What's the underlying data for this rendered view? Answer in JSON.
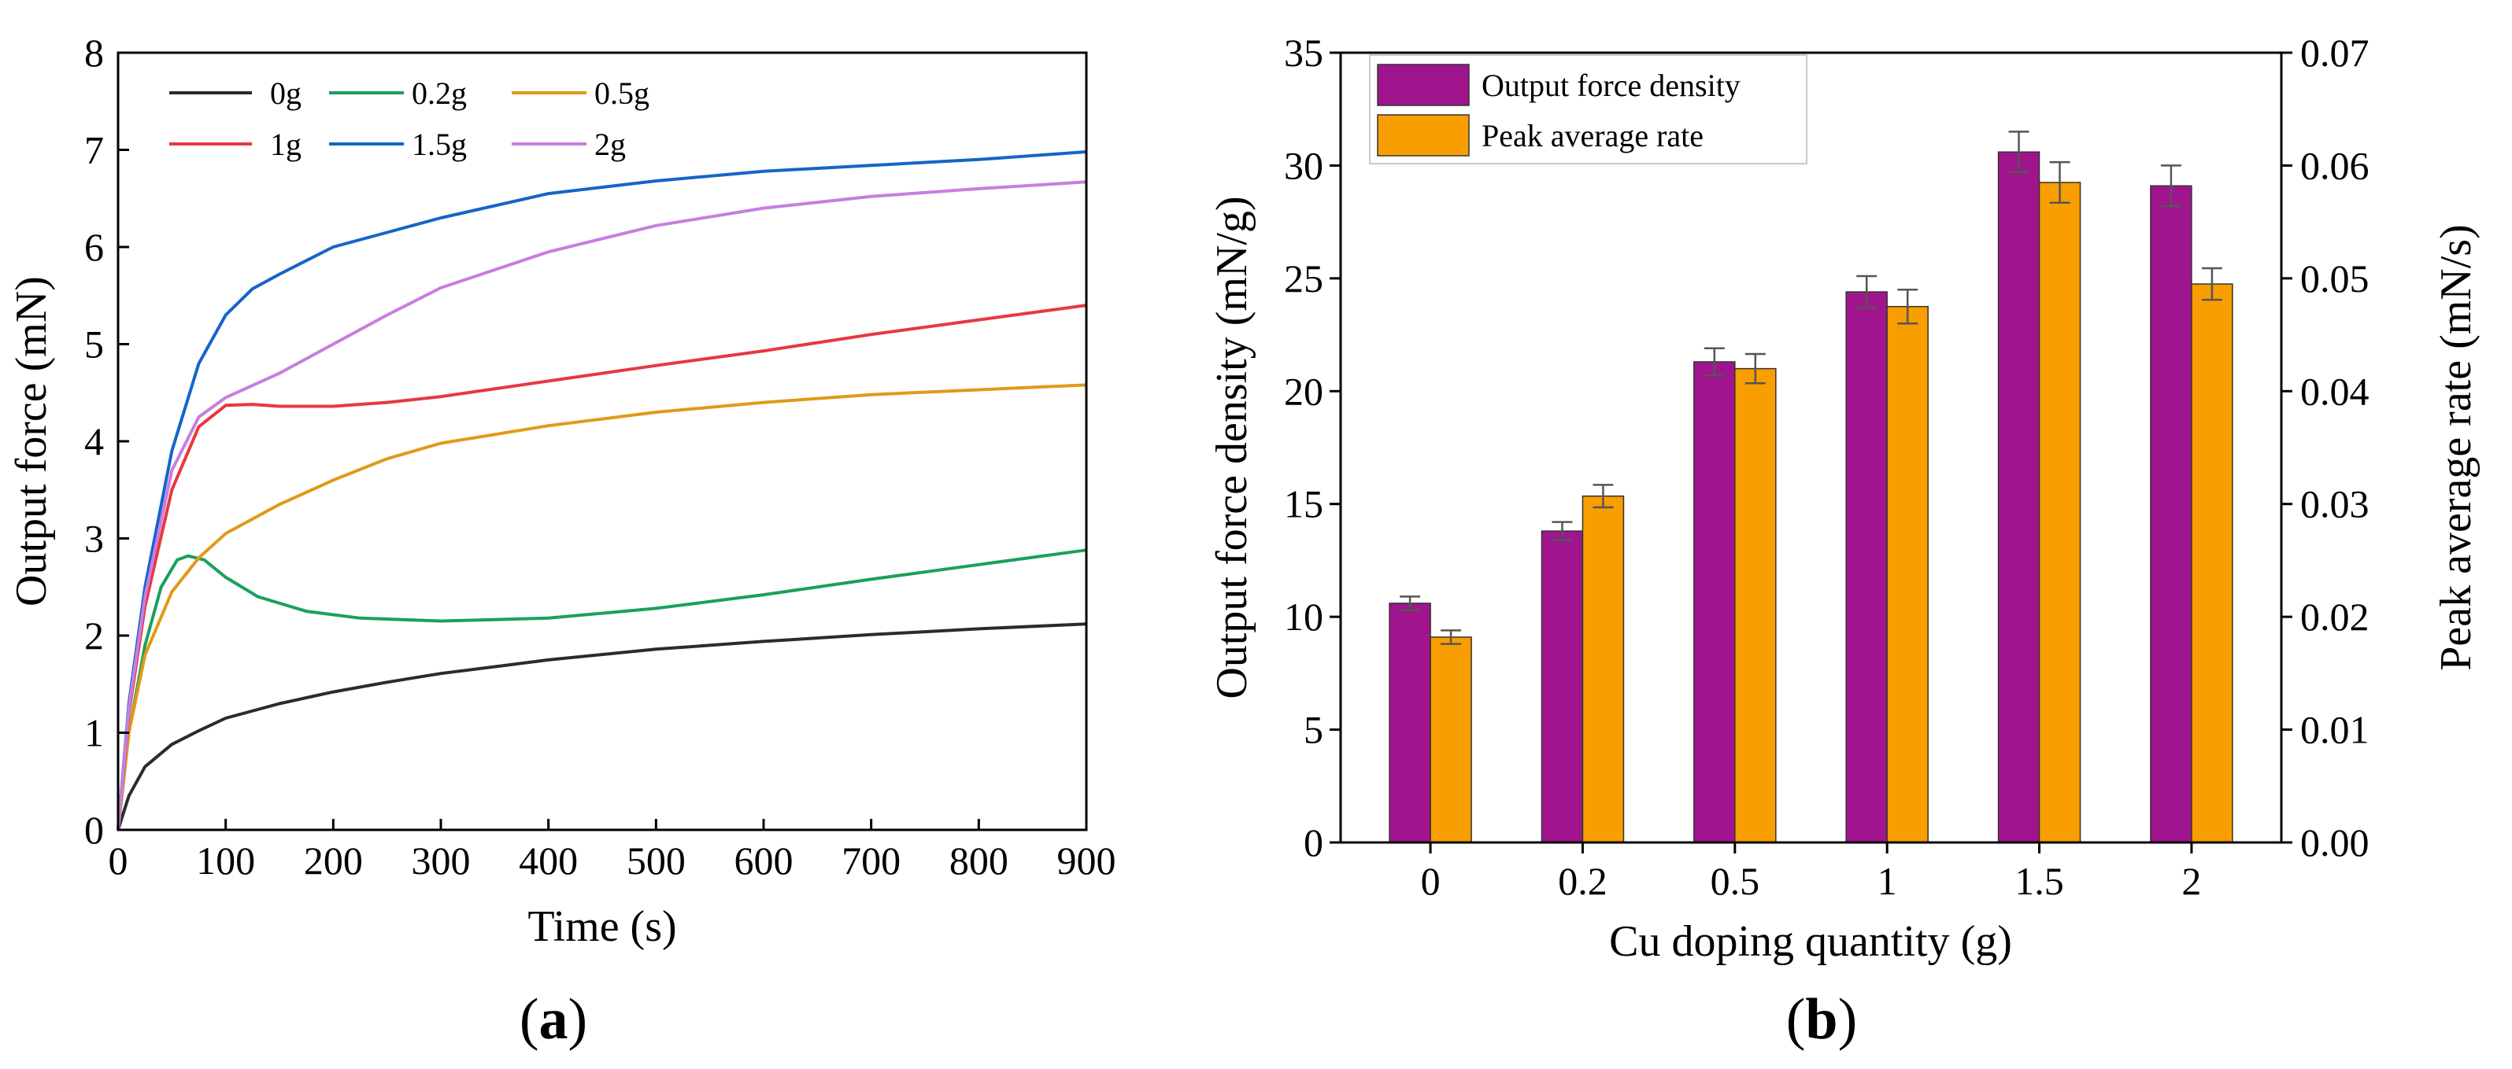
{
  "charts": {
    "a": {
      "caption": "(a)",
      "caption_parts": [
        "(",
        "a",
        ")"
      ],
      "chart_data": {
        "type": "line",
        "xlabel": "Time (s)",
        "ylabel": "Output force (mN)",
        "xlim": [
          0,
          900
        ],
        "ylim": [
          0,
          8
        ],
        "xticks": [
          0,
          100,
          200,
          300,
          400,
          500,
          600,
          700,
          800,
          900
        ],
        "yticks": [
          0,
          1,
          2,
          3,
          4,
          5,
          6,
          7,
          8
        ],
        "grid": false,
        "legend_position": "top-left",
        "series": [
          {
            "name": "0g",
            "color": "#2b2b2b",
            "x": [
              0,
              10,
              25,
              50,
              75,
              100,
              150,
              200,
              250,
              300,
              400,
              500,
              600,
              700,
              800,
              900
            ],
            "y": [
              0,
              0.35,
              0.65,
              0.88,
              1.02,
              1.15,
              1.3,
              1.42,
              1.52,
              1.61,
              1.75,
              1.86,
              1.94,
              2.01,
              2.07,
              2.12
            ]
          },
          {
            "name": "0.2g",
            "color": "#1aa05e",
            "x": [
              0,
              10,
              25,
              40,
              55,
              65,
              80,
              100,
              130,
              175,
              225,
              300,
              400,
              500,
              600,
              700,
              800,
              900
            ],
            "y": [
              0,
              1.0,
              1.9,
              2.5,
              2.78,
              2.82,
              2.78,
              2.6,
              2.4,
              2.25,
              2.18,
              2.15,
              2.18,
              2.28,
              2.42,
              2.58,
              2.73,
              2.88
            ]
          },
          {
            "name": "0.5g",
            "color": "#e09a17",
            "x": [
              0,
              10,
              25,
              50,
              75,
              100,
              150,
              200,
              250,
              300,
              400,
              500,
              600,
              700,
              800,
              900
            ],
            "y": [
              0,
              1.0,
              1.8,
              2.45,
              2.8,
              3.05,
              3.35,
              3.6,
              3.82,
              3.98,
              4.16,
              4.3,
              4.4,
              4.48,
              4.53,
              4.58
            ]
          },
          {
            "name": "1g",
            "color": "#e8383d",
            "x": [
              0,
              10,
              25,
              50,
              75,
              100,
              125,
              150,
              200,
              250,
              300,
              400,
              500,
              600,
              700,
              800,
              900
            ],
            "y": [
              0,
              1.2,
              2.3,
              3.5,
              4.15,
              4.37,
              4.38,
              4.36,
              4.36,
              4.4,
              4.46,
              4.62,
              4.78,
              4.93,
              5.1,
              5.25,
              5.4
            ]
          },
          {
            "name": "1.5g",
            "color": "#1565c8",
            "x": [
              0,
              10,
              25,
              50,
              75,
              100,
              125,
              150,
              200,
              250,
              300,
              400,
              500,
              600,
              700,
              800,
              900
            ],
            "y": [
              0,
              1.3,
              2.5,
              3.9,
              4.8,
              5.3,
              5.57,
              5.72,
              6.0,
              6.15,
              6.3,
              6.55,
              6.68,
              6.78,
              6.84,
              6.9,
              6.98
            ]
          },
          {
            "name": "2g",
            "color": "#c77ee0",
            "x": [
              0,
              10,
              25,
              50,
              75,
              100,
              150,
              200,
              250,
              300,
              400,
              500,
              600,
              700,
              800,
              900
            ],
            "y": [
              0,
              1.25,
              2.4,
              3.7,
              4.25,
              4.45,
              4.7,
              5.0,
              5.3,
              5.58,
              5.95,
              6.22,
              6.4,
              6.52,
              6.6,
              6.67
            ]
          }
        ]
      }
    },
    "b": {
      "caption": "(b)",
      "caption_parts": [
        "(",
        "b",
        ")"
      ],
      "chart_data": {
        "type": "bar",
        "xlabel": "Cu doping quantity (g)",
        "ylabel_left": "Output force density (mN/g)",
        "ylabel_right": "Peak average rate (mN/s)",
        "categories": [
          "0",
          "0.2",
          "0.5",
          "1",
          "1.5",
          "2"
        ],
        "ylim_left": [
          0,
          35
        ],
        "ylim_right": [
          0,
          0.07
        ],
        "yticks_left": [
          "0",
          "5",
          "10",
          "15",
          "20",
          "25",
          "30",
          "35"
        ],
        "yticks_right": [
          "0.00",
          "0.01",
          "0.02",
          "0.03",
          "0.04",
          "0.05",
          "0.06",
          "0.07"
        ],
        "legend_position": "top-left",
        "series": [
          {
            "name": "Output force density",
            "axis": "left",
            "color": "#a0158e",
            "values": [
              10.6,
              13.8,
              21.3,
              24.4,
              30.6,
              29.1
            ],
            "errors": [
              0.3,
              0.4,
              0.6,
              0.7,
              0.9,
              0.9
            ]
          },
          {
            "name": "Peak average rate",
            "axis": "right",
            "color": "#f89e00",
            "values": [
              0.0182,
              0.0307,
              0.042,
              0.0475,
              0.0585,
              0.0495
            ],
            "errors": [
              0.0006,
              0.001,
              0.0013,
              0.0015,
              0.0018,
              0.0014
            ]
          }
        ],
        "left_axis_color": "#9b1c8c",
        "right_axis_color": "#f19c1a"
      }
    }
  }
}
